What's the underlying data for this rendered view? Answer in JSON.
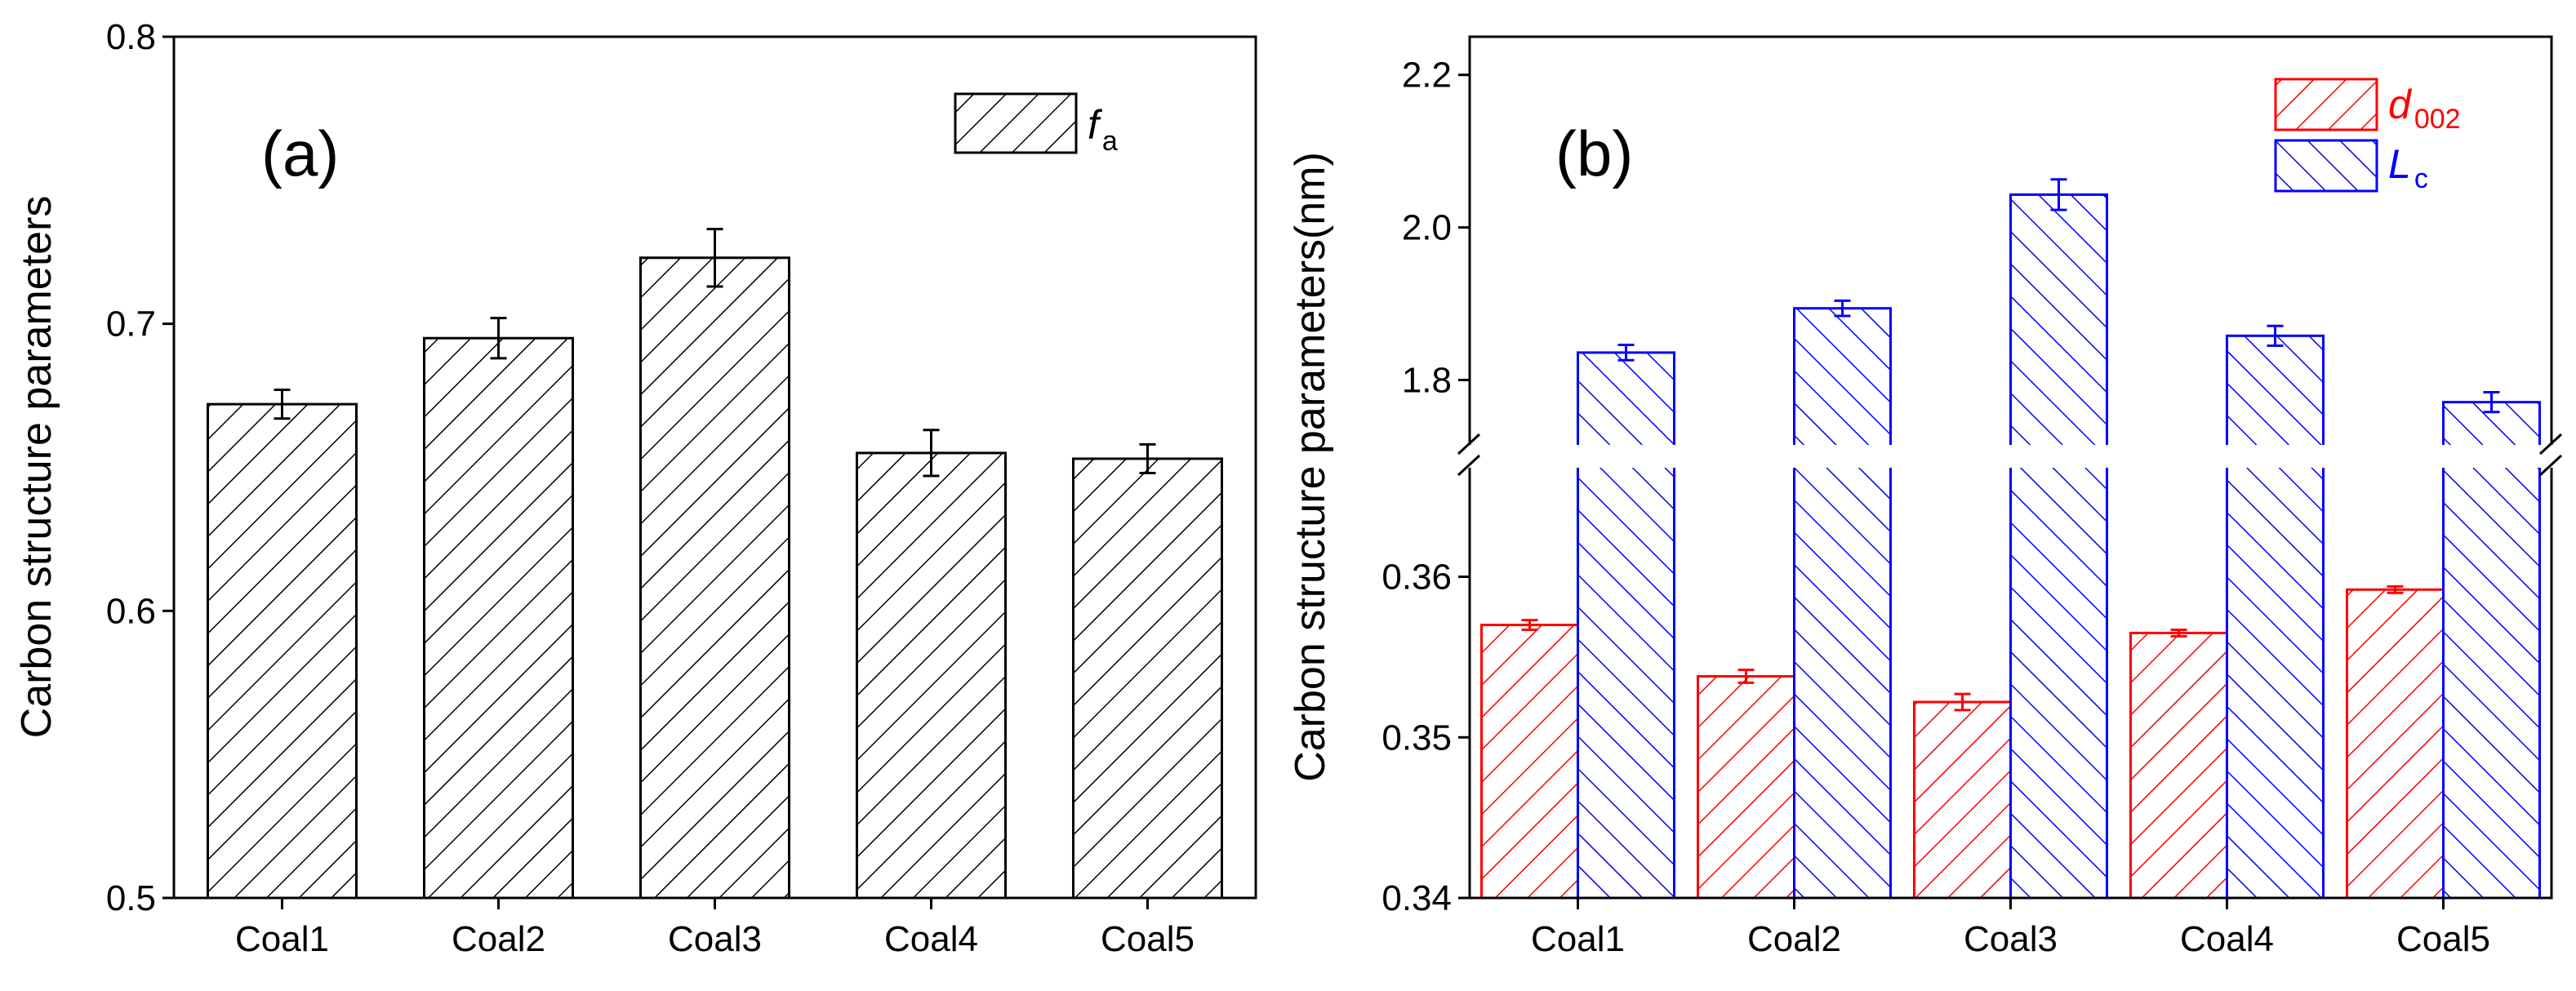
{
  "chart_data": [
    {
      "type": "bar",
      "panel_label": "(a)",
      "categories": [
        "Coal1",
        "Coal2",
        "Coal3",
        "Coal4",
        "Coal5"
      ],
      "series": [
        {
          "name_main": "f",
          "name_sub": "a",
          "values": [
            0.672,
            0.695,
            0.723,
            0.655,
            0.653
          ],
          "errors": [
            0.005,
            0.007,
            0.01,
            0.008,
            0.005
          ],
          "color": "#000000"
        }
      ],
      "ylabel": "Carbon structure parameters",
      "ylim": [
        0.5,
        0.8
      ],
      "yticks": [
        "0.5",
        "0.6",
        "0.7",
        "0.8"
      ],
      "legend_position": "top-right"
    },
    {
      "type": "bar",
      "panel_label": "(b)",
      "categories": [
        "Coal1",
        "Coal2",
        "Coal3",
        "Coal4",
        "Coal5"
      ],
      "series": [
        {
          "name_main": "d",
          "name_sub": "002",
          "values": [
            0.357,
            0.3538,
            0.3522,
            0.3565,
            0.3592
          ],
          "errors": [
            0.0003,
            0.0004,
            0.0005,
            0.0002,
            0.0002
          ],
          "color": "#ff0000"
        },
        {
          "name_main": "L",
          "name_sub": "c",
          "values": [
            1.836,
            1.894,
            2.043,
            1.858,
            1.771
          ],
          "errors": [
            0.01,
            0.01,
            0.02,
            0.013,
            0.013
          ],
          "color": "#0000ff"
        }
      ],
      "ylabel": "Carbon structure parameters(nm)",
      "y_break": true,
      "ylim_lower": [
        0.34,
        0.3675
      ],
      "ylim_upper": [
        1.7,
        2.25
      ],
      "yticks_lower": [
        "0.34",
        "0.35",
        "0.36"
      ],
      "yticks_upper": [
        "1.8",
        "2.0",
        "2.2"
      ],
      "legend_position": "top-right"
    }
  ]
}
